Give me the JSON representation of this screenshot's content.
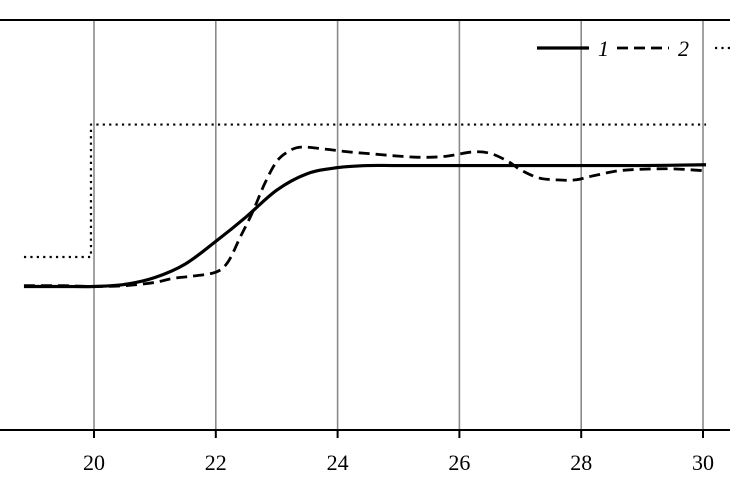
{
  "chart_data": {
    "type": "line",
    "title": "",
    "xlabel": "",
    "ylabel": "",
    "xlim": [
      18.8,
      30.5
    ],
    "ylim": [
      0,
      1
    ],
    "x_ticks": [
      20,
      22,
      24,
      26,
      28,
      30
    ],
    "x_tick_labels": [
      "20",
      "22",
      "24",
      "26",
      "28",
      "30"
    ],
    "grid": "vertical",
    "legend_position": "top-right",
    "series": [
      {
        "name": "1",
        "style": "solid",
        "color": "#000000",
        "x": [
          18.85,
          19.5,
          20.0,
          20.5,
          21.0,
          21.5,
          22.0,
          22.5,
          23.0,
          23.5,
          24.0,
          24.5,
          25.0,
          26.0,
          27.0,
          28.0,
          29.0,
          30.05
        ],
        "y": [
          0.35,
          0.35,
          0.35,
          0.355,
          0.372,
          0.405,
          0.46,
          0.52,
          0.585,
          0.625,
          0.64,
          0.645,
          0.645,
          0.645,
          0.645,
          0.645,
          0.645,
          0.647
        ]
      },
      {
        "name": "2",
        "style": "dashed",
        "color": "#000000",
        "x": [
          18.85,
          19.5,
          20.0,
          20.5,
          21.0,
          21.3,
          21.6,
          22.0,
          22.2,
          22.4,
          22.6,
          22.8,
          23.0,
          23.2,
          23.4,
          23.8,
          24.2,
          24.6,
          25.0,
          25.4,
          25.8,
          26.2,
          26.5,
          26.8,
          27.0,
          27.3,
          27.6,
          27.9,
          28.2,
          28.6,
          29.0,
          29.5,
          30.05
        ],
        "y": [
          0.352,
          0.352,
          0.35,
          0.352,
          0.36,
          0.37,
          0.375,
          0.385,
          0.41,
          0.47,
          0.53,
          0.6,
          0.655,
          0.68,
          0.69,
          0.685,
          0.678,
          0.673,
          0.668,
          0.665,
          0.668,
          0.678,
          0.675,
          0.655,
          0.635,
          0.615,
          0.61,
          0.61,
          0.62,
          0.632,
          0.636,
          0.637,
          0.632
        ]
      },
      {
        "name": "",
        "style": "dotted",
        "color": "#000000",
        "x": [
          18.85,
          19.95,
          19.95,
          30.05
        ],
        "y": [
          0.422,
          0.422,
          0.745,
          0.745
        ]
      }
    ]
  },
  "legend": {
    "items": [
      {
        "label": "1",
        "style": "solid"
      },
      {
        "label": "2",
        "style": "dashed"
      },
      {
        "label": "",
        "style": "dotted"
      }
    ]
  }
}
